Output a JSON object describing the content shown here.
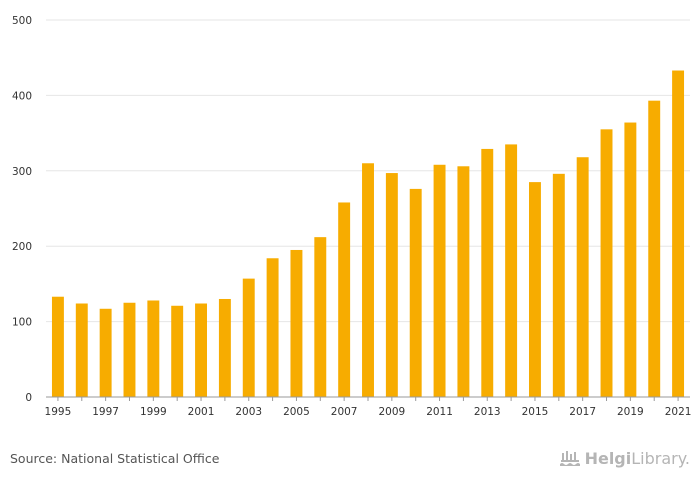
{
  "chart_data": {
    "type": "bar",
    "title": "",
    "xlabel": "",
    "ylabel": "",
    "ylim": [
      0,
      500
    ],
    "yticks": [
      "0",
      "100",
      "200",
      "300",
      "400",
      "500"
    ],
    "grid": true,
    "bar_color": "#f7ac00",
    "categories": [
      "1995",
      "1996",
      "1997",
      "1998",
      "1999",
      "2000",
      "2001",
      "2002",
      "2003",
      "2004",
      "2005",
      "2006",
      "2007",
      "2008",
      "2009",
      "2010",
      "2011",
      "2012",
      "2013",
      "2014",
      "2015",
      "2016",
      "2017",
      "2018",
      "2019",
      "2020",
      "2021"
    ],
    "xtick_labels": [
      "1995",
      "",
      "1997",
      "",
      "1999",
      "",
      "2001",
      "",
      "2003",
      "",
      "2005",
      "",
      "2007",
      "",
      "2009",
      "",
      "2011",
      "",
      "2013",
      "",
      "2015",
      "",
      "2017",
      "",
      "2019",
      "",
      "2021"
    ],
    "values": [
      133,
      124,
      117,
      125,
      128,
      121,
      124,
      130,
      157,
      184,
      195,
      212,
      258,
      310,
      297,
      276,
      308,
      306,
      329,
      335,
      285,
      296,
      318,
      355,
      364,
      393,
      433
    ]
  },
  "footer": {
    "source": "Source: National Statistical Office",
    "brand_bold": "Helgi",
    "brand_rest": "Library."
  }
}
